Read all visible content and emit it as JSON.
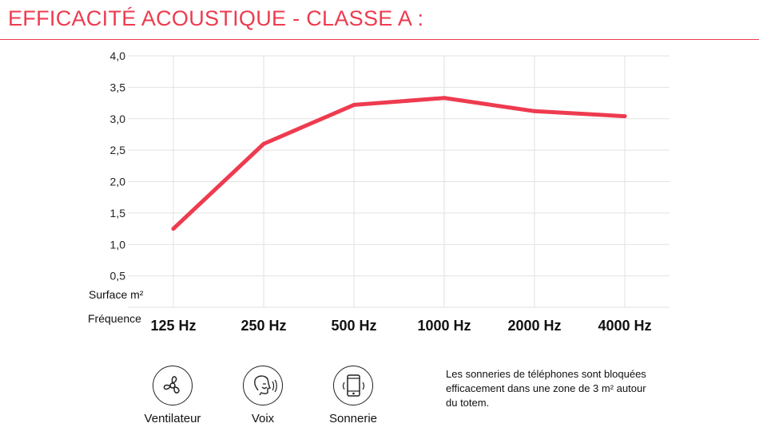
{
  "title": "EFFICACITÉ ACOUSTIQUE - CLASSE A :",
  "colors": {
    "accent": "#ee3b4f",
    "grid": "#e2e2e2"
  },
  "chart_data": {
    "type": "line",
    "categories": [
      "125 Hz",
      "250 Hz",
      "500 Hz",
      "1000 Hz",
      "2000 Hz",
      "4000 Hz"
    ],
    "values": [
      1.25,
      2.6,
      3.22,
      3.33,
      3.12,
      3.04
    ],
    "ylabel": "Surface m²",
    "xlabel": "Fréquence",
    "ylim": [
      0,
      4.0
    ],
    "yticks": [
      "4,0",
      "3,5",
      "3,0",
      "2,5",
      "2,0",
      "1,5",
      "1,0",
      "0,5"
    ],
    "grid": true,
    "line_color": "#ee3b4f"
  },
  "legend": [
    {
      "icon": "fan-icon",
      "label": "Ventilateur"
    },
    {
      "icon": "voice-icon",
      "label": "Voix"
    },
    {
      "icon": "phone-ring-icon",
      "label": "Sonnerie"
    }
  ],
  "note": "Les sonneries de téléphones sont bloquées efficacement dans une zone de 3 m² autour du totem."
}
